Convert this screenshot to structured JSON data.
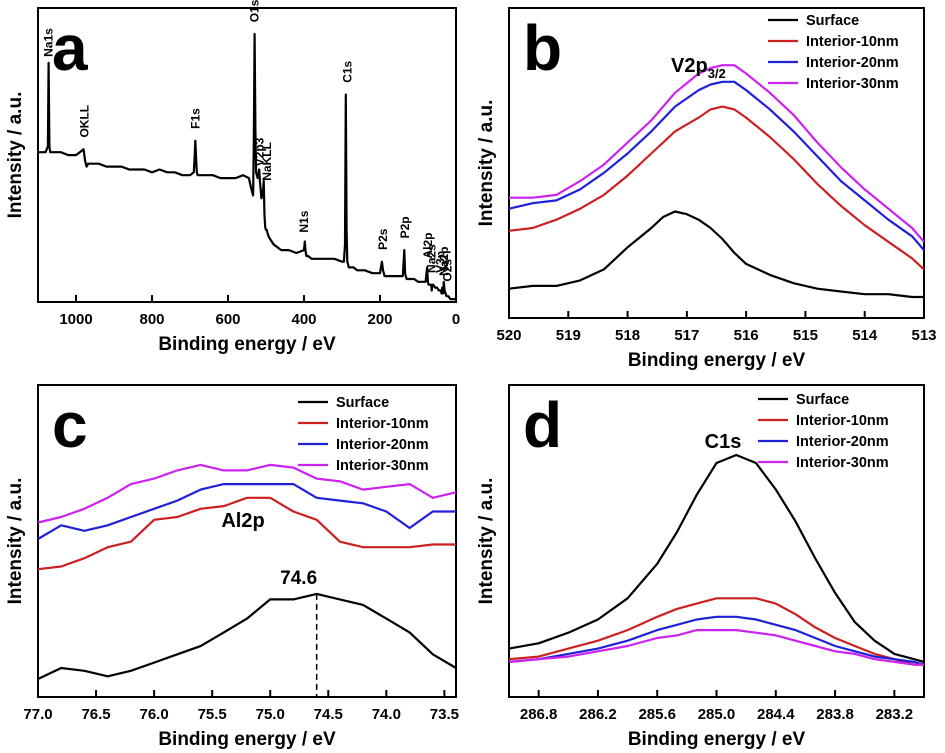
{
  "chart_data": [
    {
      "panel": "a",
      "type": "line",
      "xlabel": "Binding energy / eV",
      "ylabel": "Intensity / a.u.",
      "xlim": [
        1100,
        0
      ],
      "ylim": [
        0,
        1
      ],
      "xticks": [
        1000,
        800,
        600,
        400,
        200,
        0
      ],
      "series": [
        {
          "color": "#000000",
          "x": [
            1100,
            1080,
            1074,
            1072,
            1070,
            1068,
            1066,
            1060,
            1040,
            1020,
            1000,
            990,
            980,
            976,
            972,
            968,
            960,
            940,
            920,
            900,
            880,
            860,
            840,
            820,
            800,
            780,
            760,
            740,
            720,
            700,
            690,
            688,
            686,
            684,
            682,
            680,
            670,
            660,
            640,
            620,
            600,
            580,
            560,
            545,
            540,
            536,
            534,
            532,
            530,
            528,
            526,
            524,
            522,
            520,
            518,
            516,
            514,
            512,
            510,
            508,
            506,
            504,
            502,
            500,
            498,
            496,
            494,
            490,
            480,
            460,
            440,
            420,
            400,
            398,
            396,
            394,
            390,
            380,
            360,
            340,
            320,
            300,
            295,
            292,
            290,
            288,
            286,
            284,
            282,
            280,
            270,
            260,
            240,
            220,
            200,
            195,
            192,
            190,
            188,
            180,
            160,
            140,
            136,
            134,
            132,
            130,
            120,
            110,
            100,
            90,
            80,
            76,
            74,
            72,
            70,
            65,
            64,
            62,
            60,
            55,
            50,
            45,
            40,
            38,
            36,
            34,
            32,
            30,
            25,
            20,
            15,
            10,
            5,
            0
          ],
          "y": [
            0.52,
            0.52,
            0.54,
            0.83,
            0.54,
            0.52,
            0.52,
            0.52,
            0.52,
            0.51,
            0.51,
            0.52,
            0.53,
            0.49,
            0.47,
            0.48,
            0.48,
            0.48,
            0.47,
            0.47,
            0.47,
            0.46,
            0.46,
            0.46,
            0.45,
            0.46,
            0.45,
            0.45,
            0.44,
            0.44,
            0.45,
            0.5,
            0.56,
            0.5,
            0.45,
            0.44,
            0.44,
            0.44,
            0.44,
            0.43,
            0.43,
            0.43,
            0.44,
            0.43,
            0.4,
            0.38,
            0.37,
            0.55,
            0.93,
            0.6,
            0.45,
            0.44,
            0.43,
            0.44,
            0.46,
            0.42,
            0.39,
            0.36,
            0.37,
            0.38,
            0.42,
            0.3,
            0.26,
            0.25,
            0.25,
            0.24,
            0.23,
            0.22,
            0.2,
            0.18,
            0.18,
            0.17,
            0.18,
            0.21,
            0.18,
            0.16,
            0.16,
            0.15,
            0.15,
            0.15,
            0.15,
            0.14,
            0.14,
            0.2,
            0.72,
            0.25,
            0.14,
            0.13,
            0.12,
            0.12,
            0.12,
            0.11,
            0.11,
            0.1,
            0.1,
            0.14,
            0.11,
            0.1,
            0.09,
            0.09,
            0.09,
            0.09,
            0.18,
            0.1,
            0.09,
            0.08,
            0.08,
            0.08,
            0.07,
            0.07,
            0.07,
            0.12,
            0.07,
            0.06,
            0.06,
            0.06,
            0.04,
            0.06,
            0.06,
            0.05,
            0.05,
            0.04,
            0.04,
            0.03,
            0.05,
            0.03,
            0.07,
            0.04,
            0.02,
            0.02,
            0.01,
            0.01,
            0.01,
            0.01
          ]
        }
      ],
      "annotations": [
        {
          "label": "Na1s",
          "x": 1072,
          "y": 0.83
        },
        {
          "label": "OKLL",
          "x": 978,
          "y": 0.55
        },
        {
          "label": "F1s",
          "x": 686,
          "y": 0.58
        },
        {
          "label": "O1s",
          "x": 530,
          "y": 0.95
        },
        {
          "label": "V2p3",
          "x": 517,
          "y": 0.45
        },
        {
          "label": "NaKLL",
          "x": 497,
          "y": 0.4
        },
        {
          "label": "N1s",
          "x": 400,
          "y": 0.22
        },
        {
          "label": "C1s",
          "x": 286,
          "y": 0.74
        },
        {
          "label": "P2s",
          "x": 192,
          "y": 0.16
        },
        {
          "label": "P2p",
          "x": 134,
          "y": 0.2
        },
        {
          "label": "Al2p",
          "x": 74,
          "y": 0.13
        },
        {
          "label": "Na2s",
          "x": 64,
          "y": 0.08
        },
        {
          "label": "V3p",
          "x": 41,
          "y": 0.08
        },
        {
          "label": "Na2p",
          "x": 31,
          "y": 0.07
        },
        {
          "label": "O2s",
          "x": 23,
          "y": 0.05
        }
      ],
      "panel_label": "a"
    },
    {
      "panel": "b",
      "type": "line",
      "title": "V2p",
      "title_sub": "3/2",
      "xlabel": "Binding energy / eV",
      "ylabel": "Intensity / a.u.",
      "xlim": [
        520,
        513
      ],
      "ylim": [
        0,
        1
      ],
      "xticks": [
        520,
        519,
        518,
        517,
        516,
        515,
        514,
        513
      ],
      "legend": "top-right",
      "series": [
        {
          "name": "Surface",
          "color": "#000000",
          "x": [
            520,
            519.6,
            519.2,
            518.8,
            518.4,
            518.0,
            517.6,
            517.4,
            517.2,
            517.0,
            516.8,
            516.6,
            516.4,
            516.2,
            516.0,
            515.6,
            515.2,
            514.8,
            514.4,
            514.0,
            513.6,
            513.2,
            513.0
          ],
          "y": [
            0.05,
            0.06,
            0.06,
            0.08,
            0.12,
            0.2,
            0.27,
            0.31,
            0.33,
            0.32,
            0.3,
            0.27,
            0.23,
            0.18,
            0.14,
            0.1,
            0.07,
            0.05,
            0.04,
            0.03,
            0.03,
            0.02,
            0.02
          ]
        },
        {
          "name": "Interior-10nm",
          "color": "#cc2020",
          "x": [
            520,
            519.6,
            519.2,
            518.8,
            518.4,
            518.0,
            517.6,
            517.2,
            516.8,
            516.6,
            516.4,
            516.2,
            516.0,
            515.6,
            515.2,
            514.8,
            514.4,
            514.0,
            513.6,
            513.2,
            513.0
          ],
          "y": [
            0.26,
            0.27,
            0.3,
            0.34,
            0.39,
            0.46,
            0.54,
            0.62,
            0.67,
            0.7,
            0.71,
            0.7,
            0.67,
            0.6,
            0.52,
            0.43,
            0.35,
            0.28,
            0.22,
            0.16,
            0.12
          ]
        },
        {
          "name": "Interior-20nm",
          "color": "#2020d8",
          "x": [
            520,
            519.6,
            519.2,
            518.8,
            518.4,
            518.0,
            517.6,
            517.2,
            516.8,
            516.6,
            516.4,
            516.2,
            516.0,
            515.6,
            515.2,
            514.8,
            514.4,
            514.0,
            513.6,
            513.2,
            513.0
          ],
          "y": [
            0.34,
            0.36,
            0.37,
            0.41,
            0.47,
            0.54,
            0.62,
            0.71,
            0.77,
            0.79,
            0.8,
            0.8,
            0.77,
            0.7,
            0.62,
            0.53,
            0.44,
            0.37,
            0.3,
            0.24,
            0.19
          ]
        },
        {
          "name": "Interior-30nm",
          "color": "#cc22ee",
          "x": [
            520,
            519.6,
            519.2,
            518.8,
            518.4,
            518.0,
            517.6,
            517.2,
            516.8,
            516.6,
            516.4,
            516.2,
            516.0,
            515.6,
            515.2,
            514.8,
            514.4,
            514.0,
            513.6,
            513.2,
            513.0
          ],
          "y": [
            0.38,
            0.38,
            0.39,
            0.44,
            0.5,
            0.58,
            0.66,
            0.76,
            0.83,
            0.85,
            0.86,
            0.86,
            0.83,
            0.76,
            0.68,
            0.58,
            0.49,
            0.41,
            0.34,
            0.27,
            0.22
          ]
        }
      ],
      "panel_label": "b"
    },
    {
      "panel": "c",
      "type": "line",
      "title": "Al2p",
      "xlabel": "Binding energy / eV",
      "ylabel": "Intensity / a.u.",
      "xlim": [
        77.0,
        73.4
      ],
      "ylim": [
        0,
        1
      ],
      "xticks": [
        77.0,
        76.5,
        76.0,
        75.5,
        75.0,
        74.5,
        74.0,
        73.5
      ],
      "legend": "top-right",
      "series": [
        {
          "name": "Surface",
          "color": "#000000",
          "x": [
            77.0,
            76.8,
            76.6,
            76.4,
            76.2,
            76.0,
            75.8,
            75.6,
            75.4,
            75.2,
            75.0,
            74.8,
            74.6,
            74.4,
            74.2,
            74.0,
            73.8,
            73.6,
            73.4
          ],
          "y": [
            0.02,
            0.06,
            0.05,
            0.03,
            0.05,
            0.08,
            0.11,
            0.14,
            0.19,
            0.24,
            0.31,
            0.31,
            0.33,
            0.31,
            0.29,
            0.24,
            0.19,
            0.11,
            0.06
          ]
        },
        {
          "name": "Interior-10nm",
          "color": "#cc2020",
          "x": [
            77.0,
            76.8,
            76.6,
            76.4,
            76.2,
            76.0,
            75.8,
            75.6,
            75.4,
            75.2,
            75.0,
            74.8,
            74.6,
            74.4,
            74.2,
            74.0,
            73.8,
            73.6,
            73.4
          ],
          "y": [
            0.42,
            0.43,
            0.46,
            0.5,
            0.52,
            0.6,
            0.61,
            0.64,
            0.65,
            0.68,
            0.68,
            0.63,
            0.6,
            0.52,
            0.5,
            0.5,
            0.5,
            0.51,
            0.51
          ]
        },
        {
          "name": "Interior-20nm",
          "color": "#2020d8",
          "x": [
            77.0,
            76.8,
            76.6,
            76.4,
            76.2,
            76.0,
            75.8,
            75.6,
            75.4,
            75.2,
            75.0,
            74.8,
            74.6,
            74.4,
            74.2,
            74.0,
            73.8,
            73.6,
            73.4
          ],
          "y": [
            0.53,
            0.58,
            0.56,
            0.58,
            0.61,
            0.64,
            0.67,
            0.71,
            0.73,
            0.73,
            0.73,
            0.73,
            0.68,
            0.67,
            0.66,
            0.63,
            0.57,
            0.63,
            0.63
          ]
        },
        {
          "name": "Interior-30nm",
          "color": "#cc22ee",
          "x": [
            77.0,
            76.8,
            76.6,
            76.4,
            76.2,
            76.0,
            75.8,
            75.6,
            75.4,
            75.2,
            75.0,
            74.8,
            74.6,
            74.4,
            74.2,
            74.0,
            73.8,
            73.6,
            73.4
          ],
          "y": [
            0.59,
            0.61,
            0.64,
            0.68,
            0.73,
            0.75,
            0.78,
            0.8,
            0.78,
            0.78,
            0.8,
            0.79,
            0.75,
            0.74,
            0.71,
            0.72,
            0.73,
            0.68,
            0.7
          ]
        }
      ],
      "marker_label": "74.6",
      "marker_x": 74.6,
      "panel_label": "c"
    },
    {
      "panel": "d",
      "type": "line",
      "title": "C1s",
      "xlabel": "Binding energy / eV",
      "ylabel": "Intensity / a.u.",
      "xlim": [
        287.1,
        282.9
      ],
      "ylim": [
        0,
        1
      ],
      "xticks": [
        286.8,
        286.2,
        285.6,
        285.0,
        284.4,
        283.8,
        283.2
      ],
      "legend": "top-right",
      "series": [
        {
          "name": "Surface",
          "color": "#000000",
          "x": [
            287.1,
            286.8,
            286.5,
            286.2,
            285.9,
            285.6,
            285.4,
            285.2,
            285.0,
            284.8,
            284.6,
            284.4,
            284.2,
            284.0,
            283.8,
            283.6,
            283.4,
            283.2,
            283.0,
            282.9
          ],
          "y": [
            0.1,
            0.12,
            0.16,
            0.21,
            0.29,
            0.42,
            0.54,
            0.68,
            0.8,
            0.83,
            0.8,
            0.7,
            0.58,
            0.44,
            0.31,
            0.2,
            0.13,
            0.08,
            0.06,
            0.05
          ]
        },
        {
          "name": "Interior-10nm",
          "color": "#cc2020",
          "x": [
            287.1,
            286.8,
            286.5,
            286.2,
            285.9,
            285.6,
            285.4,
            285.2,
            285.0,
            284.8,
            284.6,
            284.4,
            284.2,
            284.0,
            283.8,
            283.6,
            283.4,
            283.2,
            283.0,
            282.9
          ],
          "y": [
            0.06,
            0.07,
            0.1,
            0.13,
            0.17,
            0.22,
            0.25,
            0.27,
            0.29,
            0.29,
            0.29,
            0.27,
            0.23,
            0.18,
            0.14,
            0.11,
            0.08,
            0.06,
            0.04,
            0.04
          ]
        },
        {
          "name": "Interior-20nm",
          "color": "#2020d8",
          "x": [
            287.1,
            286.8,
            286.5,
            286.2,
            285.9,
            285.6,
            285.4,
            285.2,
            285.0,
            284.8,
            284.6,
            284.4,
            284.2,
            284.0,
            283.8,
            283.6,
            283.4,
            283.2,
            283.0,
            282.9
          ],
          "y": [
            0.05,
            0.06,
            0.08,
            0.1,
            0.13,
            0.17,
            0.19,
            0.21,
            0.22,
            0.22,
            0.21,
            0.19,
            0.17,
            0.14,
            0.11,
            0.09,
            0.07,
            0.06,
            0.05,
            0.04
          ]
        },
        {
          "name": "Interior-30nm",
          "color": "#cc22ee",
          "x": [
            287.1,
            286.8,
            286.5,
            286.2,
            285.9,
            285.6,
            285.4,
            285.2,
            285.0,
            284.8,
            284.6,
            284.4,
            284.2,
            284.0,
            283.8,
            283.6,
            283.4,
            283.2,
            283.0,
            282.9
          ],
          "y": [
            0.05,
            0.06,
            0.07,
            0.09,
            0.11,
            0.14,
            0.15,
            0.17,
            0.17,
            0.17,
            0.16,
            0.15,
            0.13,
            0.11,
            0.09,
            0.08,
            0.06,
            0.05,
            0.04,
            0.04
          ]
        }
      ],
      "panel_label": "d"
    }
  ]
}
